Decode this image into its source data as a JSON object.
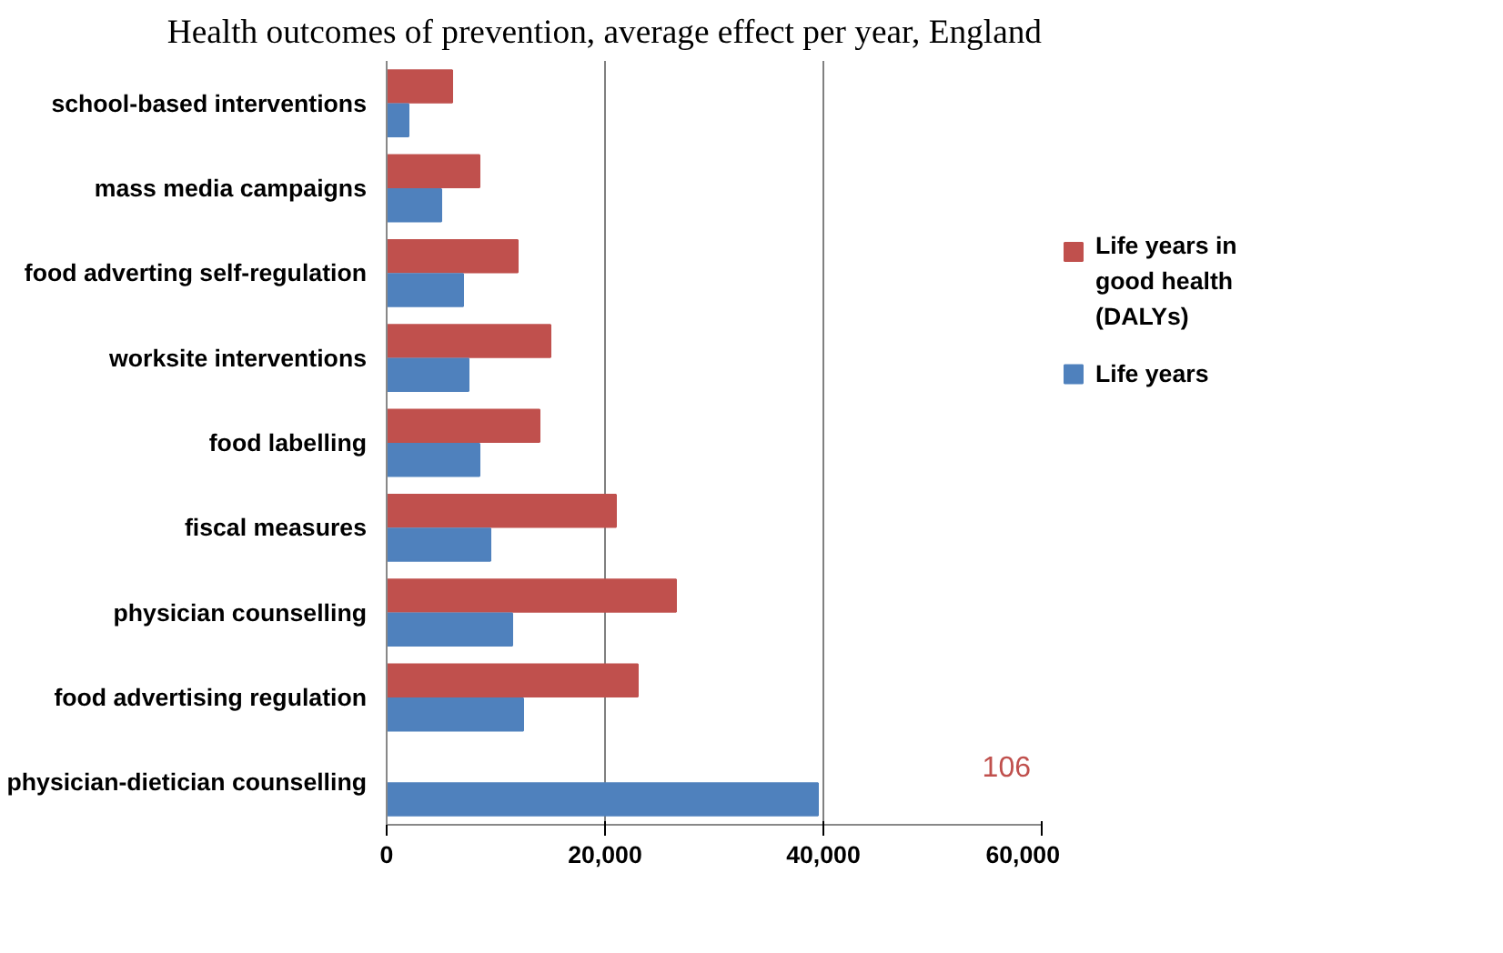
{
  "chart_data": {
    "type": "bar",
    "orientation": "horizontal",
    "title": "Health outcomes of prevention, average effect per year, England",
    "categories": [
      "school-based interventions",
      "mass media campaigns",
      "food adverting self-regulation",
      "worksite interventions",
      "food labelling",
      "fiscal measures",
      "physician counselling",
      "food advertising regulation",
      "physician-dietician counselling"
    ],
    "series": [
      {
        "name": "Life years in good health (DALYs)",
        "color": "#c0504d",
        "values": [
          6000,
          8500,
          12000,
          15000,
          14000,
          21000,
          26500,
          23000,
          null
        ]
      },
      {
        "name": "Life years",
        "color": "#4f81bd",
        "values": [
          2000,
          5000,
          7000,
          7500,
          8500,
          9500,
          11500,
          12500,
          39500
        ]
      }
    ],
    "annotations": [
      "106"
    ],
    "xlim": [
      0,
      60000
    ],
    "xticks": [
      {
        "value": 0,
        "label": "0"
      },
      {
        "value": 20000,
        "label": "20,000"
      },
      {
        "value": 40000,
        "label": "40,000"
      },
      {
        "value": 60000,
        "label": "60,000"
      }
    ],
    "grid": "x",
    "legend": "right"
  }
}
